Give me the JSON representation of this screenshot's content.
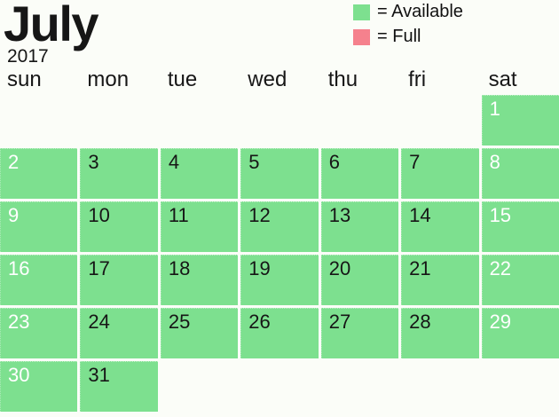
{
  "title": {
    "month": "July",
    "year": "2017"
  },
  "legend": {
    "available": {
      "label": "= Available",
      "color": "#7de08f"
    },
    "full": {
      "label": "= Full",
      "color": "#f5818d"
    }
  },
  "weekdays": [
    "sun",
    "mon",
    "tue",
    "wed",
    "thu",
    "fri",
    "sat"
  ],
  "calendar": {
    "weeks": [
      [
        null,
        null,
        null,
        null,
        null,
        null,
        1
      ],
      [
        2,
        3,
        4,
        5,
        6,
        7,
        8
      ],
      [
        9,
        10,
        11,
        12,
        13,
        14,
        15
      ],
      [
        16,
        17,
        18,
        19,
        20,
        21,
        22
      ],
      [
        23,
        24,
        25,
        26,
        27,
        28,
        29
      ],
      [
        30,
        31,
        null,
        null,
        null,
        null,
        null
      ]
    ],
    "all_days_status": "available"
  },
  "colors": {
    "available": "#7de08f",
    "full": "#f5818d",
    "weekday_text": "#161616",
    "weekend_text": "#ffffff",
    "background": "#fbfdf8"
  }
}
